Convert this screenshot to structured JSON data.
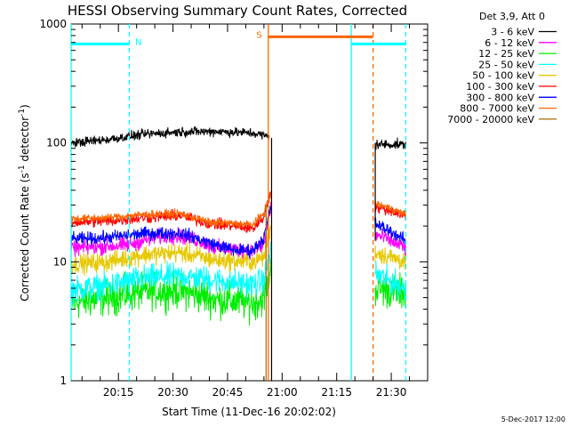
{
  "chart_data": {
    "type": "line",
    "title": "HESSI Observing Summary Count Rates, Corrected",
    "xlabel": "Start Time (11-Dec-16 20:02:02)",
    "ylabel_main": "Corrected Count Rate (s",
    "ylabel_sup1": "-1",
    "ylabel_mid": " detector",
    "ylabel_sup2": "-1",
    "ylabel_end": ")",
    "yscale": "log",
    "ylim": [
      1,
      1000
    ],
    "xlim_minutes": [
      0,
      98
    ],
    "x_tick_labels": [
      "20:15",
      "20:30",
      "20:45",
      "21:00",
      "21:15",
      "21:30"
    ],
    "x_tick_minutes": [
      13,
      28,
      43,
      58,
      73,
      88
    ],
    "y_tick_labels": [
      "1",
      "10",
      "100",
      "1000"
    ],
    "y_tick_values": [
      1,
      10,
      100,
      1000
    ],
    "legend_title": "Det 3,9, Att 0",
    "legend_position": "outside-right",
    "series": [
      {
        "name": "3 - 6 keV",
        "color": "#000000",
        "seg1": [
          [
            0,
            100
          ],
          [
            10,
            107
          ],
          [
            20,
            118
          ],
          [
            30,
            124
          ],
          [
            40,
            125
          ],
          [
            50,
            121
          ],
          [
            54.5,
            113
          ]
        ],
        "seg2": [
          [
            83.5,
            97
          ],
          [
            92,
            97
          ]
        ],
        "noise": 0.06
      },
      {
        "name": "6 - 12 keV",
        "color": "#ff00ff",
        "seg1": [
          [
            0,
            13
          ],
          [
            10,
            13.5
          ],
          [
            15,
            13.8
          ],
          [
            25,
            16.5
          ],
          [
            30,
            16.5
          ],
          [
            35,
            15.2
          ],
          [
            40,
            13
          ],
          [
            50,
            12.5
          ],
          [
            53,
            14
          ],
          [
            55,
            30
          ]
        ],
        "seg2": [
          [
            83.5,
            17
          ],
          [
            87,
            15.5
          ],
          [
            92,
            13
          ]
        ],
        "noise": 0.1
      },
      {
        "name": "12 - 25 keV",
        "color": "#00ee00",
        "seg1": [
          [
            0,
            4.5
          ],
          [
            10,
            5
          ],
          [
            20,
            5.6
          ],
          [
            30,
            5.7
          ],
          [
            40,
            4.8
          ],
          [
            50,
            4.5
          ],
          [
            53,
            5
          ],
          [
            55,
            9
          ]
        ],
        "seg2": [
          [
            83.5,
            6
          ],
          [
            92,
            5.5
          ]
        ],
        "noise": 0.22
      },
      {
        "name": "25 - 50 keV",
        "color": "#00ffff",
        "seg1": [
          [
            0,
            5.8
          ],
          [
            10,
            6.3
          ],
          [
            20,
            7.3
          ],
          [
            30,
            7.6
          ],
          [
            40,
            7
          ],
          [
            50,
            6.4
          ],
          [
            53,
            7
          ],
          [
            55,
            13
          ]
        ],
        "seg2": [
          [
            83.5,
            8
          ],
          [
            87,
            7
          ],
          [
            92,
            6
          ]
        ],
        "noise": 0.16
      },
      {
        "name": "50 - 100 keV",
        "color": "#e6c800",
        "seg1": [
          [
            0,
            9.5
          ],
          [
            10,
            10
          ],
          [
            20,
            11.5
          ],
          [
            30,
            12
          ],
          [
            40,
            10.3
          ],
          [
            50,
            10
          ],
          [
            53,
            11
          ],
          [
            55,
            20
          ]
        ],
        "seg2": [
          [
            83.5,
            12
          ],
          [
            92,
            10
          ]
        ],
        "noise": 0.12
      },
      {
        "name": "100 - 300 keV",
        "color": "#ff0000",
        "seg1": [
          [
            0,
            21.5
          ],
          [
            10,
            22
          ],
          [
            20,
            23.5
          ],
          [
            30,
            24.5
          ],
          [
            38,
            21
          ],
          [
            45,
            20
          ],
          [
            50,
            19
          ],
          [
            53,
            24
          ],
          [
            55,
            40
          ]
        ],
        "seg2": [
          [
            83.5,
            29
          ],
          [
            88,
            27
          ],
          [
            92,
            24
          ]
        ],
        "noise": 0.07
      },
      {
        "name": "300 - 800 keV",
        "color": "#0000ff",
        "seg1": [
          [
            0,
            15.5
          ],
          [
            10,
            16
          ],
          [
            20,
            17.3
          ],
          [
            30,
            17.5
          ],
          [
            38,
            14.5
          ],
          [
            45,
            12.5
          ],
          [
            50,
            12.5
          ],
          [
            53,
            16
          ],
          [
            55,
            30
          ]
        ],
        "seg2": [
          [
            83.5,
            21
          ],
          [
            88,
            18
          ],
          [
            92,
            15
          ]
        ],
        "noise": 0.08
      },
      {
        "name": "800 - 7000 keV",
        "color": "#ff6600",
        "seg1": [
          [
            0,
            23
          ],
          [
            10,
            23.5
          ],
          [
            20,
            25
          ],
          [
            30,
            25.5
          ],
          [
            38,
            21.5
          ],
          [
            45,
            21
          ],
          [
            50,
            20.5
          ],
          [
            53,
            26
          ],
          [
            55,
            38
          ]
        ],
        "seg2": [
          [
            83.5,
            31
          ],
          [
            88,
            28
          ],
          [
            92,
            25
          ]
        ],
        "noise": 0.05
      },
      {
        "name": "7000 - 20000 keV",
        "color": "#a07000",
        "seg1": [],
        "seg2": [],
        "noise": 0
      }
    ],
    "flags": [
      {
        "label": "N",
        "color": "#00ffff",
        "y": 680,
        "x_start": 0,
        "x_end": 16,
        "x_label": 18.5
      },
      {
        "label": "S",
        "color": "#ff6600",
        "y": 780,
        "x_start": 54.2,
        "x_end": 83,
        "x_label": 51.7
      },
      {
        "label": "",
        "color": "#00ffff",
        "y": 680,
        "x_start": 77,
        "x_end": 92,
        "x_label": 0
      }
    ],
    "event_lines": [
      {
        "x": 0,
        "color": "#00ffff",
        "style": "solid"
      },
      {
        "x": 16,
        "color": "#00ffff",
        "style": "dashed"
      },
      {
        "x": 54.2,
        "color": "#ff6600",
        "style": "solid"
      },
      {
        "x": 77,
        "color": "#00ffff",
        "style": "solid"
      },
      {
        "x": 83,
        "color": "#ff6600",
        "style": "dashed"
      },
      {
        "x": 92,
        "color": "#00ffff",
        "style": "dashed"
      }
    ],
    "date_stamp": "5-Dec-2017 12:00"
  }
}
